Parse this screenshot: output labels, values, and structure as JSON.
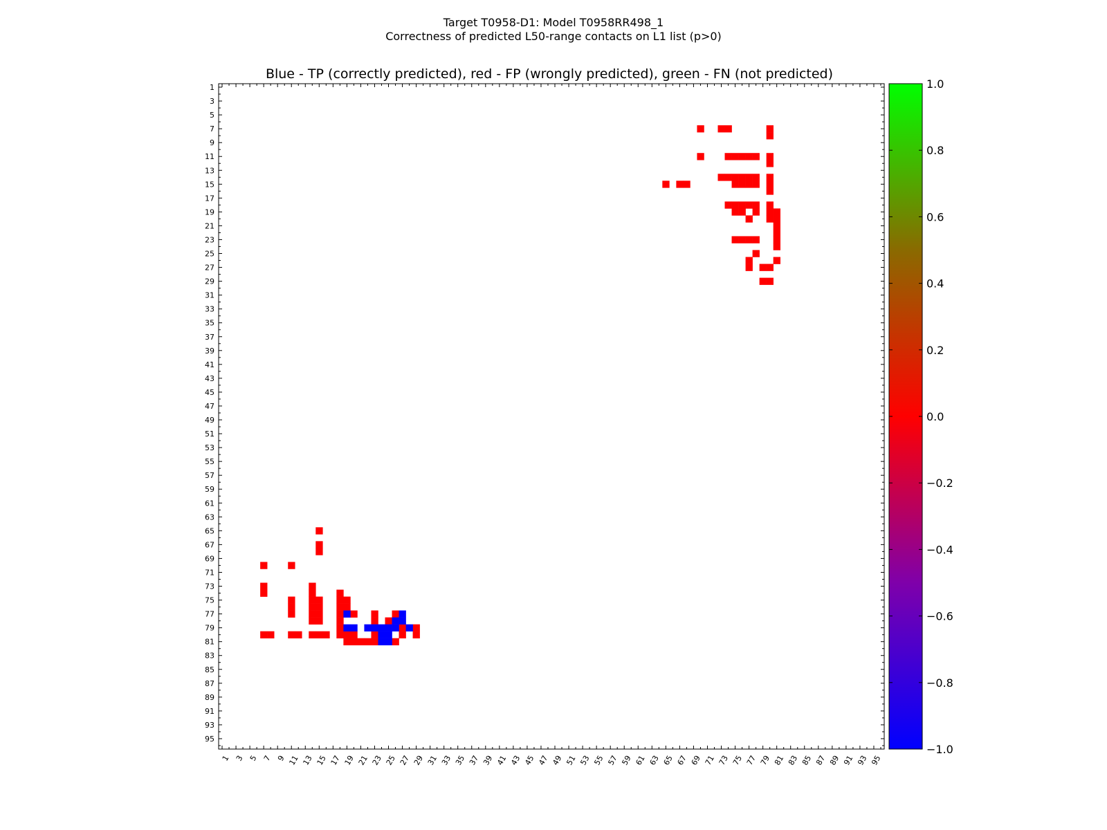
{
  "title_lines": [
    "Target T0958-D1: Model T0958RR498_1",
    "Correctness of predicted L50-range contacts on L1 list (p>0)"
  ],
  "colors": {
    "tp": "#0000ff",
    "fp": "#ff0000",
    "fn": "#00ff00"
  },
  "chart_data": {
    "type": "heatmap",
    "title": "Blue - TP (correctly predicted), red - FP (wrongly predicted), green - FN (not predicted)",
    "n_residues": 96,
    "xlim": [
      1,
      96
    ],
    "ylim": [
      1,
      96
    ],
    "x_ticks": [
      "1",
      "3",
      "5",
      "7",
      "9",
      "11",
      "13",
      "15",
      "17",
      "19",
      "21",
      "23",
      "25",
      "27",
      "29",
      "31",
      "33",
      "35",
      "37",
      "39",
      "41",
      "43",
      "45",
      "47",
      "49",
      "51",
      "53",
      "55",
      "57",
      "59",
      "61",
      "63",
      "65",
      "67",
      "69",
      "71",
      "73",
      "75",
      "77",
      "79",
      "81",
      "83",
      "85",
      "87",
      "89",
      "91",
      "93",
      "95"
    ],
    "y_ticks": [
      "1",
      "3",
      "5",
      "7",
      "9",
      "11",
      "13",
      "15",
      "17",
      "19",
      "21",
      "23",
      "25",
      "27",
      "29",
      "31",
      "33",
      "35",
      "37",
      "39",
      "41",
      "43",
      "45",
      "47",
      "49",
      "51",
      "53",
      "55",
      "57",
      "59",
      "61",
      "63",
      "65",
      "67",
      "69",
      "71",
      "73",
      "75",
      "77",
      "79",
      "81",
      "83",
      "85",
      "87",
      "89",
      "91",
      "93",
      "95"
    ],
    "colorbar": {
      "range": [
        -1.0,
        1.0
      ],
      "ticks": [
        "1.0",
        "0.8",
        "0.6",
        "0.4",
        "0.2",
        "0.0",
        "−0.2",
        "−0.4",
        "−0.6",
        "−0.8",
        "−1.0"
      ],
      "tick_values": [
        1.0,
        0.8,
        0.6,
        0.4,
        0.2,
        0.0,
        -0.2,
        -0.4,
        -0.6,
        -0.8,
        -1.0
      ]
    },
    "contacts_tp": [
      [
        77,
        19
      ],
      [
        77,
        27
      ],
      [
        78,
        26
      ],
      [
        78,
        27
      ],
      [
        79,
        19
      ],
      [
        79,
        20
      ],
      [
        79,
        22
      ],
      [
        79,
        23
      ],
      [
        79,
        24
      ],
      [
        79,
        25
      ],
      [
        79,
        26
      ],
      [
        79,
        28
      ],
      [
        80,
        24
      ],
      [
        80,
        25
      ],
      [
        81,
        24
      ],
      [
        81,
        25
      ]
    ],
    "contacts_fp": [
      [
        7,
        70
      ],
      [
        7,
        73
      ],
      [
        7,
        74
      ],
      [
        7,
        80
      ],
      [
        8,
        80
      ],
      [
        11,
        70
      ],
      [
        11,
        74
      ],
      [
        11,
        75
      ],
      [
        11,
        76
      ],
      [
        11,
        77
      ],
      [
        11,
        78
      ],
      [
        11,
        80
      ],
      [
        12,
        80
      ],
      [
        14,
        73
      ],
      [
        14,
        74
      ],
      [
        14,
        75
      ],
      [
        14,
        76
      ],
      [
        14,
        77
      ],
      [
        14,
        78
      ],
      [
        14,
        80
      ],
      [
        15,
        65
      ],
      [
        15,
        67
      ],
      [
        15,
        68
      ],
      [
        15,
        75
      ],
      [
        15,
        76
      ],
      [
        15,
        77
      ],
      [
        15,
        78
      ],
      [
        15,
        80
      ],
      [
        16,
        80
      ],
      [
        18,
        74
      ],
      [
        18,
        75
      ],
      [
        18,
        76
      ],
      [
        18,
        77
      ],
      [
        18,
        78
      ],
      [
        18,
        80
      ],
      [
        19,
        75
      ],
      [
        19,
        76
      ],
      [
        19,
        78
      ],
      [
        19,
        80
      ],
      [
        19,
        81
      ],
      [
        20,
        77
      ],
      [
        20,
        80
      ],
      [
        20,
        81
      ],
      [
        21,
        81
      ],
      [
        22,
        81
      ],
      [
        23,
        75
      ],
      [
        23,
        76
      ],
      [
        23,
        77
      ],
      [
        23,
        78
      ],
      [
        23,
        81
      ],
      [
        24,
        81
      ],
      [
        25,
        78
      ],
      [
        26,
        77
      ],
      [
        26,
        81
      ],
      [
        27,
        77
      ],
      [
        27,
        79
      ],
      [
        27,
        80
      ],
      [
        29,
        79
      ],
      [
        29,
        80
      ],
      [
        65,
        15
      ],
      [
        67,
        15
      ],
      [
        68,
        15
      ],
      [
        70,
        7
      ],
      [
        70,
        11
      ],
      [
        73,
        7
      ],
      [
        73,
        14
      ],
      [
        74,
        7
      ],
      [
        74,
        14
      ],
      [
        74,
        18
      ],
      [
        75,
        11
      ],
      [
        75,
        14
      ],
      [
        75,
        15
      ],
      [
        75,
        18
      ],
      [
        75,
        19
      ],
      [
        76,
        11
      ],
      [
        76,
        14
      ],
      [
        76,
        15
      ],
      [
        76,
        18
      ],
      [
        76,
        19
      ],
      [
        77,
        11
      ],
      [
        77,
        14
      ],
      [
        77,
        15
      ],
      [
        77,
        18
      ],
      [
        77,
        20
      ],
      [
        77,
        23
      ],
      [
        77,
        26
      ],
      [
        78,
        14
      ],
      [
        78,
        15
      ],
      [
        78,
        18
      ],
      [
        78,
        23
      ],
      [
        78,
        25
      ],
      [
        79,
        18
      ],
      [
        79,
        27
      ],
      [
        79,
        29
      ],
      [
        80,
        7
      ],
      [
        80,
        8
      ],
      [
        80,
        11
      ],
      [
        80,
        12
      ],
      [
        80,
        14
      ],
      [
        80,
        15
      ],
      [
        80,
        16
      ],
      [
        80,
        18
      ],
      [
        80,
        19
      ],
      [
        80,
        20
      ],
      [
        80,
        23
      ],
      [
        80,
        27
      ],
      [
        80,
        29
      ],
      [
        81,
        19
      ],
      [
        81,
        20
      ],
      [
        81,
        21
      ],
      [
        81,
        22
      ],
      [
        81,
        23
      ],
      [
        81,
        26
      ]
    ],
    "contacts_fn": []
  }
}
